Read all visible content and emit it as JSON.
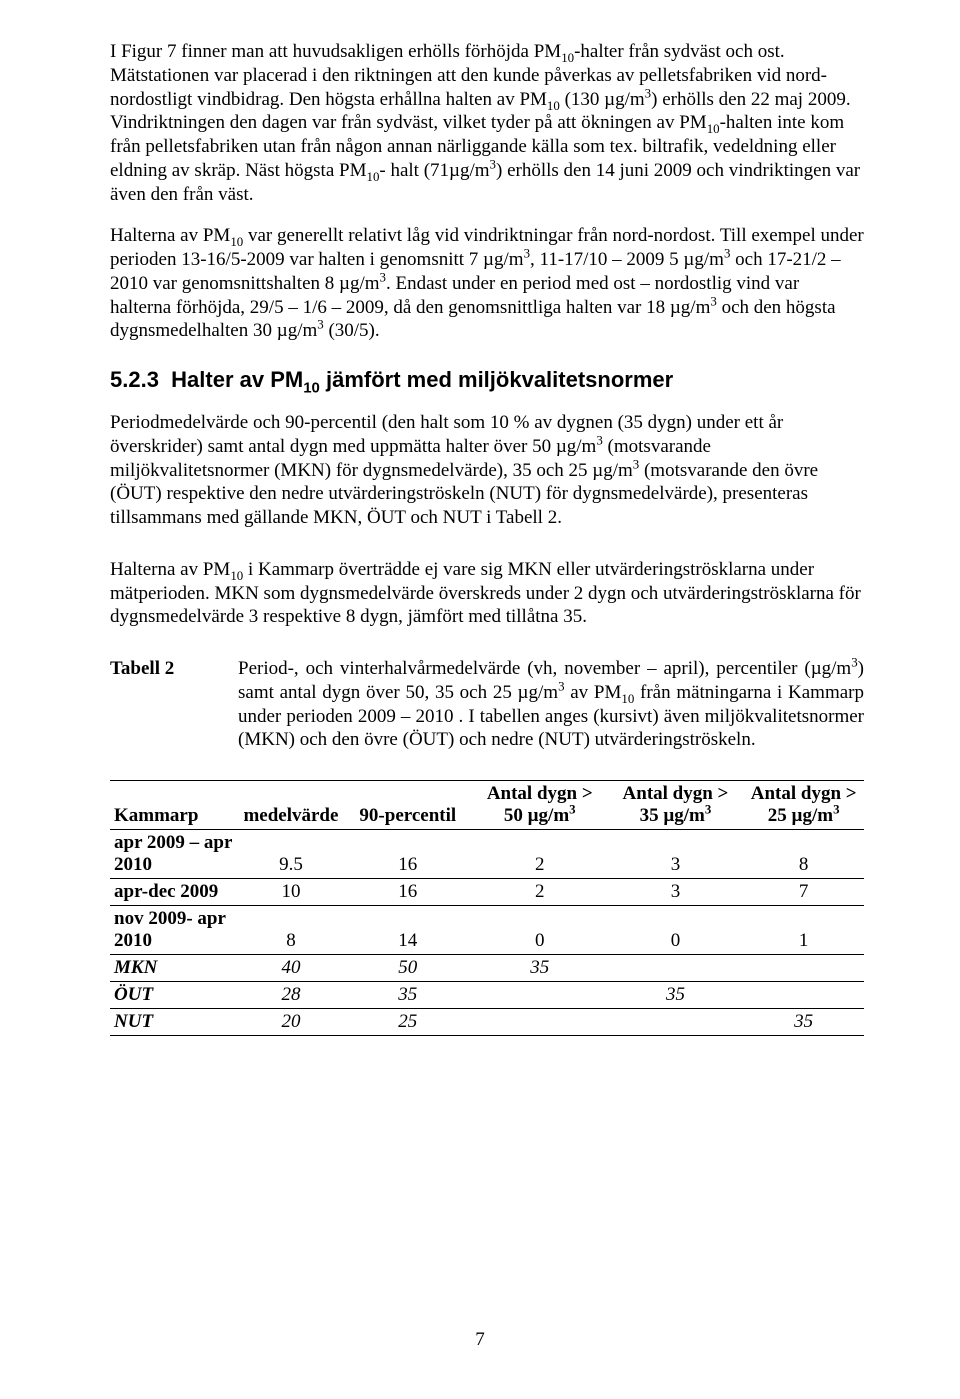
{
  "paragraphs": {
    "p1": "I Figur 7 finner man att huvudsakligen erhölls förhöjda PM__SUB10__-halter från sydväst och ost. Mätstationen var placerad i den riktningen att den kunde påverkas av pelletsfabriken vid nord-nordostligt vindbidrag. Den högsta erhållna halten av PM__SUB10__ (130 µg/m__SUP3__) erhölls den 22 maj 2009. Vindriktningen den dagen var från sydväst, vilket tyder på att ökningen av PM__SUB10__-halten inte kom från pelletsfabriken utan från någon annan närliggande källa som tex. biltrafik, vedeldning eller eldning av skräp. Näst högsta PM__SUB10__- halt (71µg/m__SUP3__) erhölls den 14 juni 2009 och vindriktingen var även den från väst.",
    "p2": "Halterna av PM__SUB10__ var generellt relativt låg vid vindriktningar från nord-nordost. Till exempel under perioden 13-16/5-2009 var halten i genomsnitt 7 µg/m__SUP3__, 11-17/10 – 2009 5 µg/m__SUP3__ och 17-21/2 – 2010 var genomsnittshalten 8 µg/m__SUP3__. Endast under en period med ost – nordostlig vind var halterna förhöjda, 29/5 – 1/6 – 2009, då den genomsnittliga halten var 18 µg/m__SUP3__ och den högsta dygnsmedelhalten 30 µg/m__SUP3__ (30/5).",
    "p3": "Periodmedelvärde och 90-percentil (den halt som 10 % av dygnen (35 dygn) under ett år överskrider) samt antal dygn med uppmätta halter över 50 µg/m__SUP3__ (motsvarande miljökvalitetsnormer (MKN) för dygnsmedelvärde), 35 och 25 µg/m__SUP3__ (motsvarande den övre (ÖUT) respektive den nedre utvärderingströskeln (NUT) för dygnsmedelvärde), presenteras tillsammans med gällande MKN, ÖUT och NUT i Tabell 2.",
    "p4": "Halterna av PM__SUB10__ i Kammarp överträdde ej vare sig MKN eller utvärderingströsklarna under mätperioden. MKN som dygnsmedelvärde överskreds under 2 dygn och utvärderingströsklarna för dygnsmedelvärde 3 respektive 8 dygn, jämfört med tillåtna 35."
  },
  "heading": {
    "number": "5.2.3",
    "text": "Halter av PM__SUB10__ jämfört med miljökvalitetsnormer"
  },
  "table_caption": {
    "label": "Tabell 2",
    "text": "Period-, och vinterhalvårmedelvärde (vh, november – april), percentiler (µg/m__SUP3__) samt antal dygn över 50, 35 och 25 µg/m__SUP3__ av PM__SUB10__ från mätningarna i Kammarp under perioden 2009 – 2010 . I tabellen anges (kursivt) även miljökvalitetsnormer (MKN) och den övre (ÖUT) och nedre (NUT) utvärderingströskeln."
  },
  "table": {
    "columns": [
      "Kammarp",
      "medelvärde",
      "90-percentil",
      "Antal dygn > 50 µg/m__SUP3__",
      "Antal dygn > 35 µg/m__SUP3__",
      "Antal dygn > 25 µg/m__SUP3__"
    ],
    "col_weights": [
      "17%",
      "14%",
      "17%",
      "18%",
      "18%",
      "16%"
    ],
    "rows": [
      {
        "label": "apr 2009 – apr 2010",
        "vals": [
          "9.5",
          "16",
          "2",
          "3",
          "8"
        ],
        "italic": false
      },
      {
        "label": "apr-dec 2009",
        "vals": [
          "10",
          "16",
          "2",
          "3",
          "7"
        ],
        "italic": false
      },
      {
        "label": "nov 2009- apr 2010",
        "vals": [
          "8",
          "14",
          "0",
          "0",
          "1"
        ],
        "italic": false
      },
      {
        "label": "MKN",
        "vals": [
          "40",
          "50",
          "35",
          "",
          ""
        ],
        "italic": true
      },
      {
        "label": "ÖUT",
        "vals": [
          "28",
          "35",
          "",
          "35",
          ""
        ],
        "italic": true
      },
      {
        "label": "NUT",
        "vals": [
          "20",
          "25",
          "",
          "",
          "35"
        ],
        "italic": true
      }
    ]
  },
  "page_number": "7"
}
